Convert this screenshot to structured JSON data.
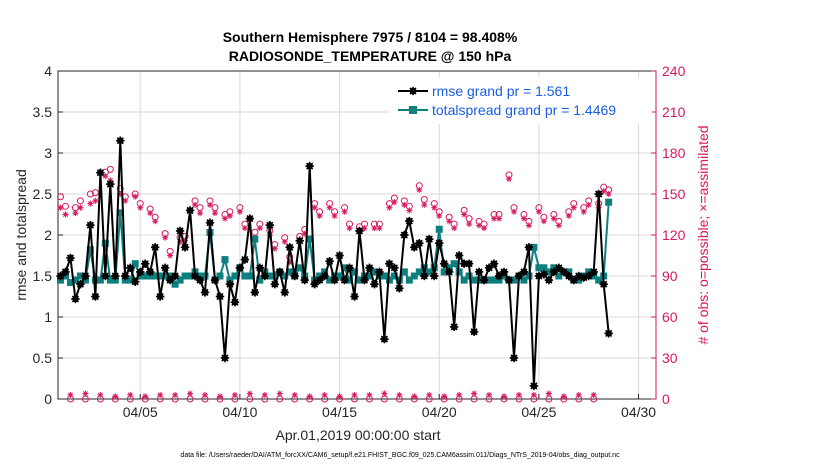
{
  "chart_data": {
    "type": "line",
    "title": "Southern Hemisphere 7975 / 8104 = 98.408%",
    "subtitle": "RADIOSONDE_TEMPERATURE @ 150 hPa",
    "xlabel": "Apr.01,2019 00:00:00 start",
    "ylabel": "rmse and totalspread",
    "ylabel_right": "# of obs: o=possible; ×=assimilated",
    "ylim": [
      0,
      4
    ],
    "ylim_right": [
      0,
      240
    ],
    "xlim": [
      0.875,
      30.875
    ],
    "yticks": [
      "0",
      "0.5",
      "1",
      "1.5",
      "2",
      "2.5",
      "3",
      "3.5",
      "4"
    ],
    "yticks_right": [
      "0",
      "30",
      "60",
      "90",
      "120",
      "150",
      "180",
      "210",
      "240"
    ],
    "xticks": [
      {
        "x": 5,
        "label": "04/05"
      },
      {
        "x": 10,
        "label": "04/10"
      },
      {
        "x": 15,
        "label": "04/15"
      },
      {
        "x": 20,
        "label": "04/20"
      },
      {
        "x": 25,
        "label": "04/25"
      },
      {
        "x": 30,
        "label": "04/30"
      }
    ],
    "grid": true,
    "legend_position": "top-right",
    "footnote": "data file: /Users/raeder/DAI/ATM_forcXX/CAM6_setup/f.e21.FHIST_BGC.f09_025.CAM6assim.011/Diags_NTrS_2019-04/obs_diag_output.nc",
    "colors": {
      "rmse": "#000000",
      "spread": "#0e7f7f",
      "obs": "#d6195d",
      "legend_text": "#1a5ce6"
    },
    "series": [
      {
        "name": "rmse grand pr = 1.561",
        "key": "rmse",
        "t0": 1.0,
        "dt": 0.25,
        "values": [
          1.5,
          1.55,
          1.72,
          1.22,
          1.4,
          1.5,
          2.12,
          1.25,
          2.76,
          1.5,
          2.62,
          1.5,
          3.15,
          1.5,
          1.6,
          1.43,
          1.55,
          1.65,
          1.55,
          1.85,
          1.25,
          1.6,
          1.45,
          1.5,
          2.05,
          1.85,
          2.3,
          1.5,
          1.45,
          1.3,
          2.15,
          1.45,
          1.25,
          0.5,
          1.4,
          1.18,
          1.6,
          1.7,
          2.2,
          1.3,
          1.6,
          1.5,
          2.12,
          1.4,
          1.55,
          1.3,
          1.85,
          1.5,
          1.93,
          1.45,
          2.84,
          1.4,
          1.45,
          1.5,
          1.68,
          1.45,
          1.75,
          1.45,
          1.6,
          1.25,
          2.05,
          1.45,
          1.6,
          1.4,
          1.55,
          0.73,
          1.65,
          1.6,
          1.35,
          2.0,
          2.17,
          1.85,
          1.9,
          1.5,
          1.95,
          1.5,
          1.9,
          1.65,
          1.55,
          0.88,
          1.75,
          1.65,
          1.65,
          0.82,
          1.55,
          1.45,
          1.6,
          1.65,
          1.5,
          1.55,
          1.45,
          0.5,
          1.5,
          1.55,
          1.85,
          0.16,
          1.5,
          1.52,
          1.45,
          1.55,
          1.6,
          1.55,
          1.5,
          1.45,
          1.5,
          1.48,
          1.5,
          1.55,
          2.5,
          1.4,
          0.8
        ]
      },
      {
        "name": "totalspread grand pr = 1.4469",
        "key": "spread",
        "t0": 1.0,
        "dt": 0.25,
        "values": [
          1.45,
          1.5,
          1.42,
          1.45,
          1.5,
          1.45,
          1.82,
          1.45,
          1.45,
          1.9,
          1.45,
          1.45,
          2.27,
          1.45,
          1.45,
          1.65,
          1.5,
          1.5,
          1.5,
          1.5,
          1.5,
          1.5,
          1.5,
          1.4,
          1.45,
          1.5,
          1.5,
          1.55,
          1.5,
          1.5,
          2.03,
          1.45,
          1.5,
          1.7,
          1.45,
          1.5,
          1.6,
          1.5,
          1.5,
          1.95,
          1.45,
          1.55,
          1.5,
          1.5,
          1.55,
          1.5,
          1.55,
          1.5,
          1.6,
          1.5,
          1.95,
          1.45,
          1.5,
          1.55,
          1.45,
          1.5,
          1.5,
          1.6,
          1.45,
          1.55,
          1.45,
          1.5,
          1.5,
          1.55,
          1.5,
          1.5,
          1.45,
          1.5,
          1.45,
          1.55,
          1.45,
          1.5,
          1.55,
          1.6,
          1.55,
          1.6,
          2.07,
          1.55,
          1.6,
          1.65,
          1.55,
          1.45,
          1.5,
          1.45,
          1.45,
          1.45,
          1.45,
          1.45,
          1.45,
          1.5,
          1.45,
          1.45,
          1.5,
          1.45,
          1.5,
          1.85,
          1.6,
          1.6,
          1.55,
          1.6,
          1.5,
          1.55,
          1.55,
          1.45,
          1.45,
          1.5,
          1.55,
          1.5,
          1.45,
          1.5,
          2.4
        ]
      }
    ],
    "obs_possible": {
      "t0": 1.0,
      "dt": 0.25,
      "values": [
        148,
        141,
        0,
        140,
        145,
        0,
        150,
        151,
        0,
        166,
        168,
        0,
        154,
        148,
        0,
        150,
        143,
        0,
        139,
        133,
        0,
        121,
        108,
        0,
        118,
        119,
        0,
        145,
        140,
        0,
        145,
        140,
        0,
        135,
        137,
        0,
        140,
        128,
        0,
        122,
        128,
        0,
        123,
        113,
        0,
        118,
        104,
        0,
        119,
        124,
        0,
        143,
        137,
        0,
        143,
        137,
        0,
        140,
        128,
        0,
        126,
        128,
        0,
        128,
        128,
        0,
        143,
        147,
        0,
        145,
        141,
        0,
        156,
        146,
        0,
        143,
        137,
        0,
        133,
        128,
        0,
        138,
        132,
        0,
        130,
        128,
        0,
        135,
        135,
        0,
        164,
        140,
        0,
        135,
        130,
        0,
        140,
        133,
        0,
        135,
        130,
        0,
        137,
        143,
        0,
        140,
        145,
        0,
        143,
        155,
        153
      ]
    },
    "obs_assimilated": {
      "t0": 1.0,
      "dt": 0.25,
      "values": [
        140,
        135,
        3,
        136,
        140,
        4,
        143,
        145,
        3,
        163,
        160,
        2,
        150,
        145,
        3,
        148,
        140,
        2,
        136,
        130,
        3,
        118,
        105,
        3,
        115,
        116,
        4,
        142,
        136,
        3,
        142,
        136,
        2,
        132,
        134,
        3,
        137,
        125,
        4,
        118,
        125,
        3,
        120,
        110,
        4,
        115,
        100,
        3,
        116,
        121,
        2,
        140,
        134,
        3,
        140,
        134,
        2,
        137,
        125,
        3,
        123,
        125,
        3,
        125,
        125,
        4,
        140,
        144,
        3,
        142,
        138,
        2,
        153,
        142,
        3,
        140,
        134,
        2,
        130,
        125,
        3,
        135,
        128,
        4,
        127,
        125,
        3,
        132,
        132,
        2,
        161,
        137,
        3,
        132,
        127,
        3,
        137,
        130,
        4,
        132,
        127,
        2,
        134,
        140,
        3,
        137,
        142,
        3,
        140,
        152,
        150
      ]
    }
  }
}
